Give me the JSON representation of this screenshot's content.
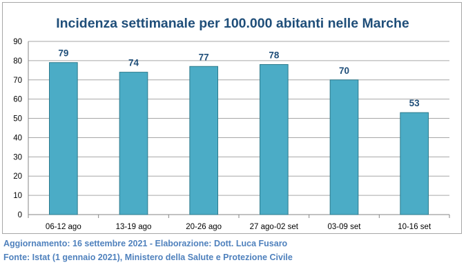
{
  "chart_data": {
    "type": "bar",
    "title": "Incidenza settimanale per 100.000 abitanti nelle Marche",
    "xlabel": "",
    "ylabel": "",
    "categories": [
      "06-12 ago",
      "13-19 ago",
      "20-26 ago",
      "27 ago-02 set",
      "03-09 set",
      "10-16 set"
    ],
    "values": [
      79,
      74,
      77,
      78,
      70,
      53
    ],
    "data_labels": [
      "79",
      "74",
      "77",
      "78",
      "70",
      "53"
    ],
    "ylim": [
      0,
      90
    ],
    "yticks": [
      0,
      10,
      20,
      30,
      40,
      50,
      60,
      70,
      80,
      90
    ],
    "grid": true,
    "legend": "none",
    "bar_color": "#4bacc6",
    "bar_edge_color": "#2c7a8c",
    "title_color": "#1f4e79"
  },
  "footer": {
    "line1": "Aggiornamento: 16 settembre 2021 - Elaborazione: Dott. Luca Fusaro",
    "line2": "Fonte: Istat (1 gennaio 2021), Ministero della Salute e Protezione Civile"
  }
}
